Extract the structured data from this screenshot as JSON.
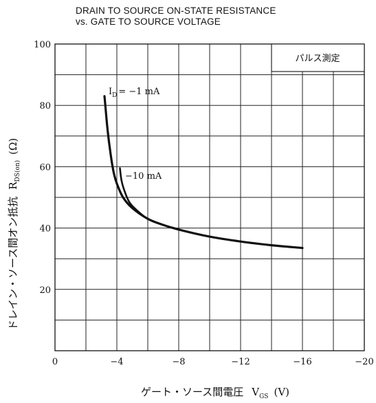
{
  "title": {
    "line1": "DRAIN TO SOURCE ON-STATE RESISTANCE",
    "line2": "vs. GATE TO SOURCE VOLTAGE"
  },
  "chart_data": {
    "type": "line",
    "title": "DRAIN TO SOURCE ON-STATE RESISTANCE vs. GATE TO SOURCE VOLTAGE",
    "xlabel": "ゲート・ソース間電圧 V_GS (V)",
    "ylabel": "ドレイン・ソース間オン抵抗 R_DS(on) (Ω)",
    "xlim": [
      0,
      -20
    ],
    "ylim": [
      0,
      100
    ],
    "grid": true,
    "x_ticks": [
      {
        "value": 0,
        "label": "0"
      },
      {
        "value": -4,
        "label": "−4"
      },
      {
        "value": -8,
        "label": "−8"
      },
      {
        "value": -12,
        "label": "−12"
      },
      {
        "value": -16,
        "label": "−16"
      },
      {
        "value": -20,
        "label": "−20"
      }
    ],
    "y_ticks": [
      {
        "value": 20,
        "label": "20"
      },
      {
        "value": 40,
        "label": "40"
      },
      {
        "value": 60,
        "label": "60"
      },
      {
        "value": 80,
        "label": "80"
      },
      {
        "value": 100,
        "label": "100"
      }
    ],
    "box_note": "パルス測定",
    "series": [
      {
        "name": "I_D = −1 mA",
        "x": [
          -3.2,
          -3.4,
          -3.6,
          -3.8,
          -4.0,
          -4.4,
          -5.0,
          -6.0,
          -7.0,
          -8.0,
          -10.0,
          -12.0,
          -14.0,
          -16.0
        ],
        "y": [
          83.0,
          72.0,
          64.0,
          58.0,
          54.5,
          50.0,
          46.5,
          43.0,
          41.0,
          39.5,
          37.2,
          35.6,
          34.4,
          33.5
        ]
      },
      {
        "name": "I_D = −10 mA",
        "x": [
          -4.2,
          -4.3,
          -4.5,
          -4.8,
          -5.2,
          -6.0,
          -7.0,
          -8.0
        ],
        "y": [
          59.5,
          55.5,
          52.0,
          48.5,
          46.2,
          43.0,
          41.0,
          39.6
        ]
      }
    ]
  },
  "labels": {
    "id_prefix": "I",
    "id_sub": "D",
    "id_val1": "= −1 mA",
    "id_val2": "−10 mA",
    "y_main": "ドレイン・ソース間オン抵抗",
    "y_r": "R",
    "y_sub": "DS(on)",
    "y_unit": "(Ω)",
    "x_main": "ゲート・ソース間電圧",
    "x_v": "V",
    "x_sub": "GS",
    "x_unit": "(V)"
  }
}
